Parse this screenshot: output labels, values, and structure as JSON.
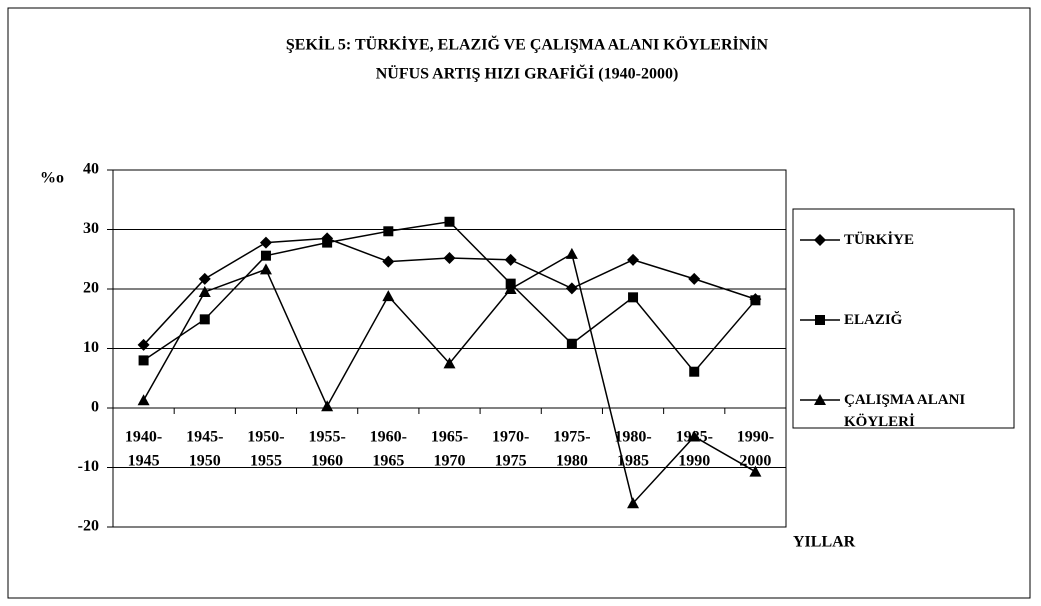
{
  "chart_data": {
    "type": "line",
    "title": [
      "ŞEKİL 5: TÜRKİYE, ELAZIĞ VE ÇALIŞMA ALANI KÖYLERİNİN",
      "NÜFUS ARTIŞ HIZI GRAFİĞİ (1940-2000)"
    ],
    "y_label": "%o",
    "x_label": "YILLAR",
    "categories": [
      [
        "1940-",
        "1945"
      ],
      [
        "1945-",
        "1950"
      ],
      [
        "1950-",
        "1955"
      ],
      [
        "1955-",
        "1960"
      ],
      [
        "1960-",
        "1965"
      ],
      [
        "1965-",
        "1970"
      ],
      [
        "1970-",
        "1975"
      ],
      [
        "1975-",
        "1980"
      ],
      [
        "1980-",
        "1985"
      ],
      [
        "1985-",
        "1990"
      ],
      [
        "1990-",
        "2000"
      ]
    ],
    "series": [
      {
        "name": "TÜRKİYE",
        "color": "#000000",
        "marker": "diamond",
        "values": [
          10.6,
          21.7,
          27.8,
          28.5,
          24.6,
          25.2,
          24.9,
          20.1,
          24.9,
          21.7,
          18.3
        ]
      },
      {
        "name": "ELAZIĞ",
        "color": "#000000",
        "marker": "square",
        "values": [
          8,
          14.9,
          25.6,
          27.8,
          29.7,
          31.3,
          20.9,
          10.8,
          18.6,
          6.1,
          18.1
        ]
      },
      {
        "name": "ÇALIŞMA ALANI KÖYLERİ",
        "color": "#000000",
        "marker": "triangle",
        "values": [
          1.3,
          19.5,
          23.3,
          0.3,
          18.8,
          7.5,
          20,
          25.9,
          -16,
          -4.8,
          -10.7
        ]
      }
    ],
    "ylim": [
      -20,
      40
    ],
    "yticks": [
      -20,
      -10,
      0,
      10,
      20,
      30,
      40
    ],
    "grid": true,
    "legend": "right"
  }
}
